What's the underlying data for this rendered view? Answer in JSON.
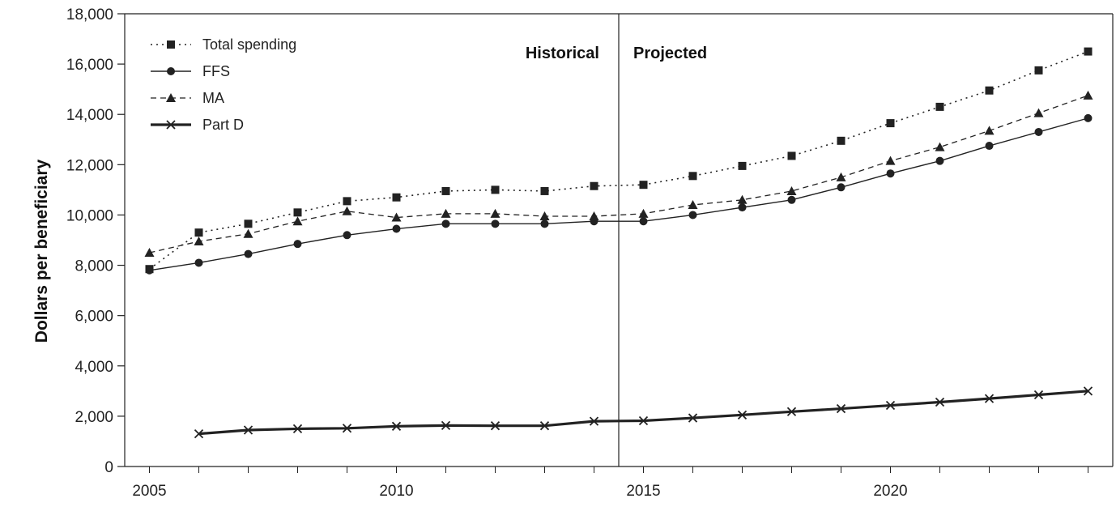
{
  "chart_data": {
    "type": "line",
    "xlabel": "",
    "ylabel": "Dollars per beneficiary",
    "x": [
      2005,
      2006,
      2007,
      2008,
      2009,
      2010,
      2011,
      2012,
      2013,
      2014,
      2015,
      2016,
      2017,
      2018,
      2019,
      2020,
      2021,
      2022,
      2023,
      2024
    ],
    "xlim": [
      2004.5,
      2024.5
    ],
    "ylim": [
      0,
      18000
    ],
    "x_ticks": [
      "2005",
      "2010",
      "2015",
      "2020"
    ],
    "y_ticks": [
      "0",
      "2,000",
      "4,000",
      "6,000",
      "8,000",
      "10,000",
      "12,000",
      "14,000",
      "16,000",
      "18,000"
    ],
    "grid": false,
    "legend_position": "top-left",
    "divider_x": 2014.5,
    "annotations": {
      "historical": "Historical",
      "projected": "Projected"
    },
    "series": [
      {
        "name": "Total spending",
        "marker": "square",
        "line": "dotted",
        "values": [
          7850,
          9300,
          9650,
          10100,
          10550,
          10700,
          10950,
          11000,
          10950,
          11150,
          11200,
          11550,
          11950,
          12350,
          12950,
          13650,
          14300,
          14950,
          15750,
          16500
        ]
      },
      {
        "name": "FFS",
        "marker": "circle",
        "line": "solid",
        "values": [
          7800,
          8100,
          8450,
          8850,
          9200,
          9450,
          9650,
          9650,
          9650,
          9750,
          9750,
          10000,
          10300,
          10600,
          11100,
          11650,
          12150,
          12750,
          13300,
          13850
        ]
      },
      {
        "name": "MA",
        "marker": "triangle",
        "line": "dashed",
        "values": [
          8500,
          8950,
          9250,
          9750,
          10150,
          9900,
          10050,
          10050,
          9950,
          9950,
          10050,
          10400,
          10600,
          10950,
          11500,
          12150,
          12700,
          13350,
          14050,
          14750
        ]
      },
      {
        "name": "Part D",
        "marker": "x",
        "line": "thick",
        "values": [
          null,
          1300,
          1450,
          1500,
          1520,
          1600,
          1630,
          1620,
          1620,
          1800,
          1820,
          1930,
          2050,
          2180,
          2300,
          2430,
          2560,
          2700,
          2850,
          3000
        ]
      }
    ]
  }
}
